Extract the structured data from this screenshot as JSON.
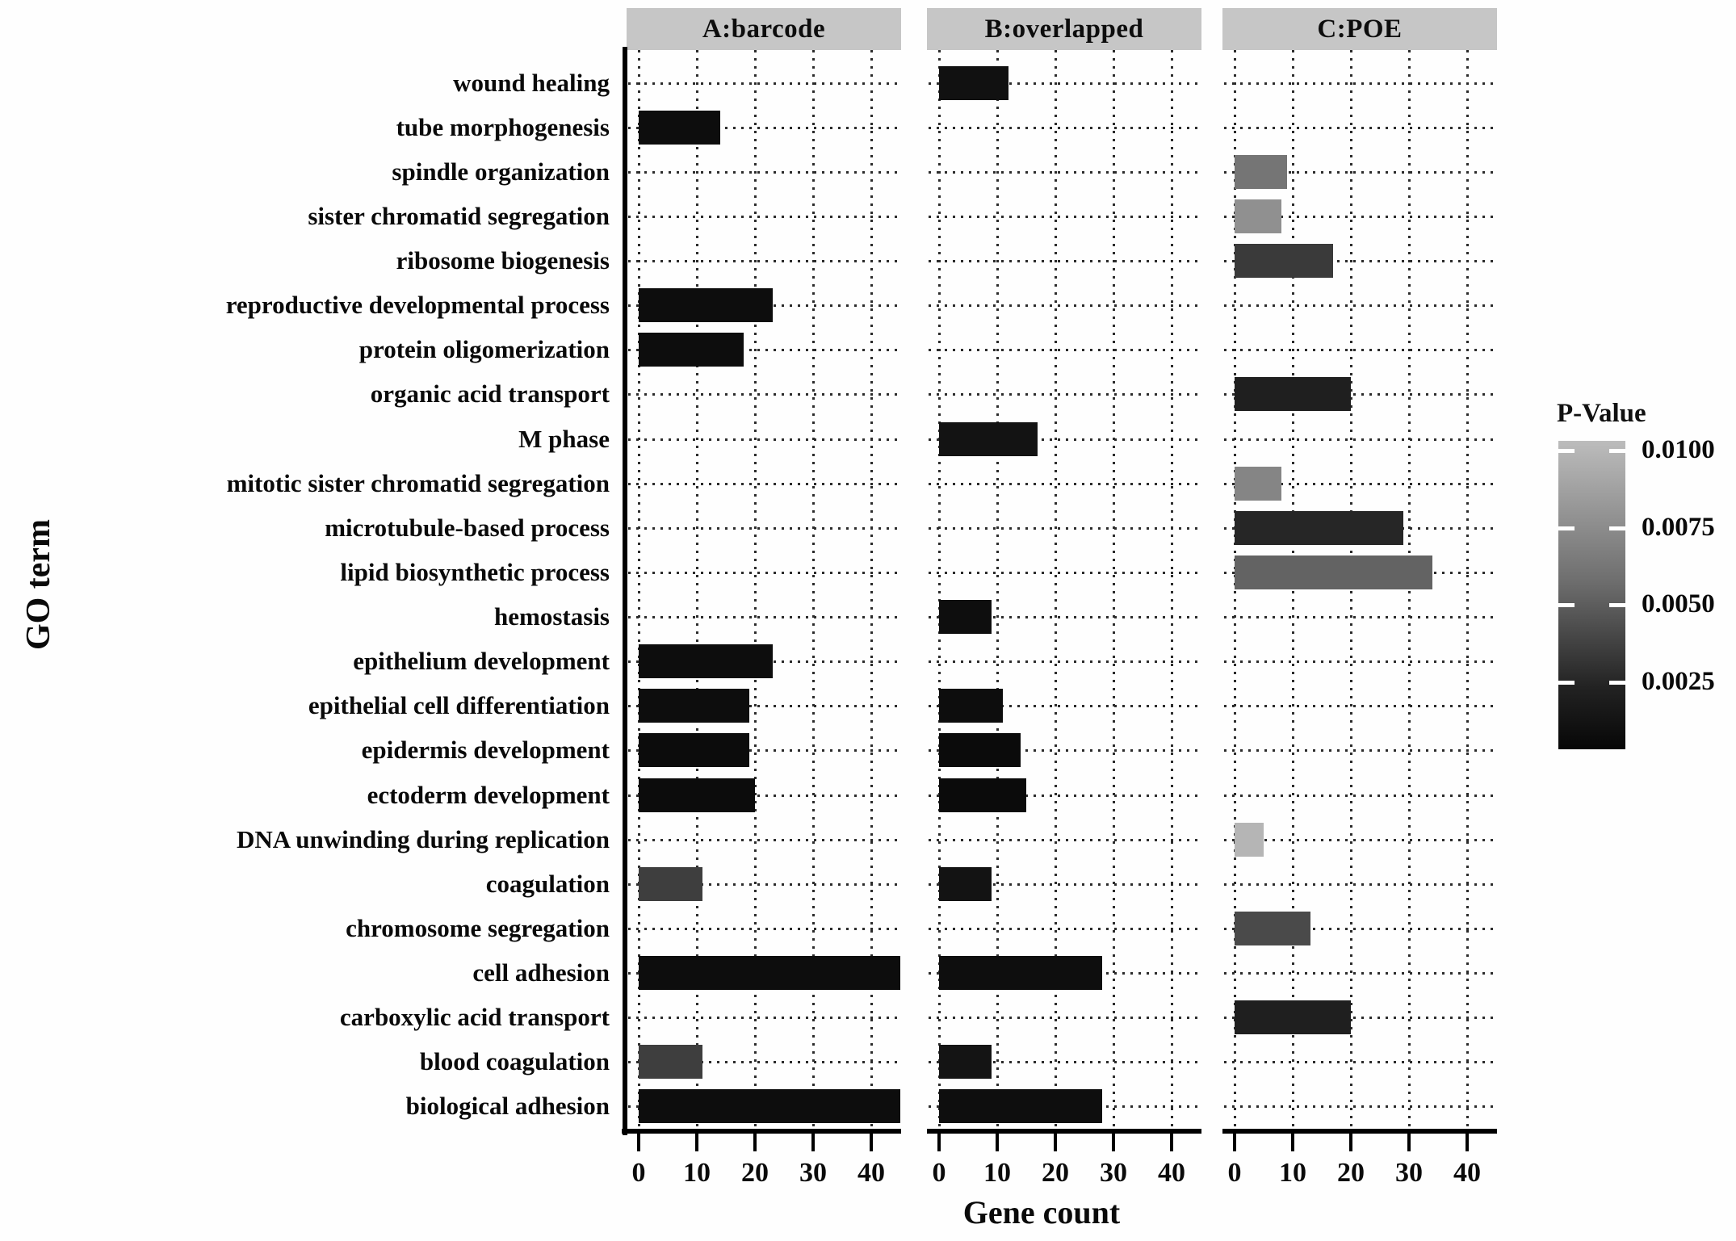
{
  "figure": {
    "x_axis_title": "Gene count",
    "y_axis_title": "GO term"
  },
  "legend": {
    "title": "P-Value",
    "labels": [
      "0.0100",
      "0.0075",
      "0.0050",
      "0.0025"
    ],
    "gradient_top_color": "#bcbcbc",
    "gradient_bottom_color": "#070707"
  },
  "chart_data": {
    "type": "bar",
    "orientation": "horizontal",
    "title": "",
    "xlabel": "Gene count",
    "ylabel": "GO term",
    "facets": [
      "A:barcode",
      "B:overlapped",
      "C:POE"
    ],
    "x_ticks": [
      0,
      10,
      20,
      30,
      40
    ],
    "xlim": [
      -2,
      45
    ],
    "grid": "dotted",
    "legend_position": "right",
    "color_encoding": "P-Value grayscale: light gray = 0.0100, black = < 0.0025",
    "categories": [
      "wound healing",
      "tube morphogenesis",
      "spindle organization",
      "sister chromatid segregation",
      "ribosome biogenesis",
      "reproductive developmental process",
      "protein oligomerization",
      "organic acid transport",
      "M phase",
      "mitotic sister chromatid segregation",
      "microtubule-based process",
      "lipid biosynthetic process",
      "hemostasis",
      "epithelium development",
      "epithelial cell differentiation",
      "epidermis development",
      "ectoderm development",
      "DNA unwinding during replication",
      "coagulation",
      "chromosome segregation",
      "cell adhesion",
      "carboxylic acid transport",
      "blood coagulation",
      "biological adhesion"
    ],
    "series": [
      {
        "name": "A:barcode",
        "values": [
          null,
          14,
          null,
          null,
          null,
          23,
          18,
          null,
          null,
          null,
          null,
          null,
          null,
          23,
          19,
          19,
          20,
          null,
          11,
          null,
          45,
          null,
          11,
          45
        ],
        "colors": [
          null,
          "#0d0d0d",
          null,
          null,
          null,
          "#0d0d0d",
          "#0d0d0d",
          null,
          null,
          null,
          null,
          null,
          null,
          "#0d0d0d",
          "#0d0d0d",
          "#0c0c0c",
          "#0c0c0c",
          null,
          "#3e3e3e",
          null,
          "#0d0d0d",
          null,
          "#3e3e3e",
          "#0d0d0d"
        ]
      },
      {
        "name": "B:overlapped",
        "values": [
          12,
          null,
          null,
          null,
          null,
          null,
          null,
          null,
          17,
          null,
          null,
          null,
          9,
          null,
          11,
          14,
          15,
          null,
          9,
          null,
          28,
          null,
          9,
          28
        ],
        "colors": [
          "#111111",
          null,
          null,
          null,
          null,
          null,
          null,
          null,
          "#131313",
          null,
          null,
          null,
          "#0e0e0e",
          null,
          "#0d0d0d",
          "#0b0b0b",
          "#0b0b0b",
          null,
          "#131313",
          null,
          "#0e0e0e",
          null,
          "#141414",
          "#0e0e0e"
        ]
      },
      {
        "name": "C:POE",
        "values": [
          null,
          null,
          9,
          8,
          17,
          null,
          null,
          20,
          null,
          8,
          29,
          34,
          null,
          null,
          null,
          null,
          null,
          5,
          null,
          13,
          null,
          20,
          null,
          null
        ],
        "colors": [
          null,
          null,
          "#757575",
          "#909090",
          "#3a3a3a",
          null,
          null,
          "#1f1f1f",
          null,
          "#858585",
          "#262626",
          "#636363",
          null,
          null,
          null,
          null,
          null,
          "#b5b5b5",
          null,
          "#4a4a4a",
          null,
          "#1f1f1f",
          null,
          null
        ]
      }
    ]
  }
}
